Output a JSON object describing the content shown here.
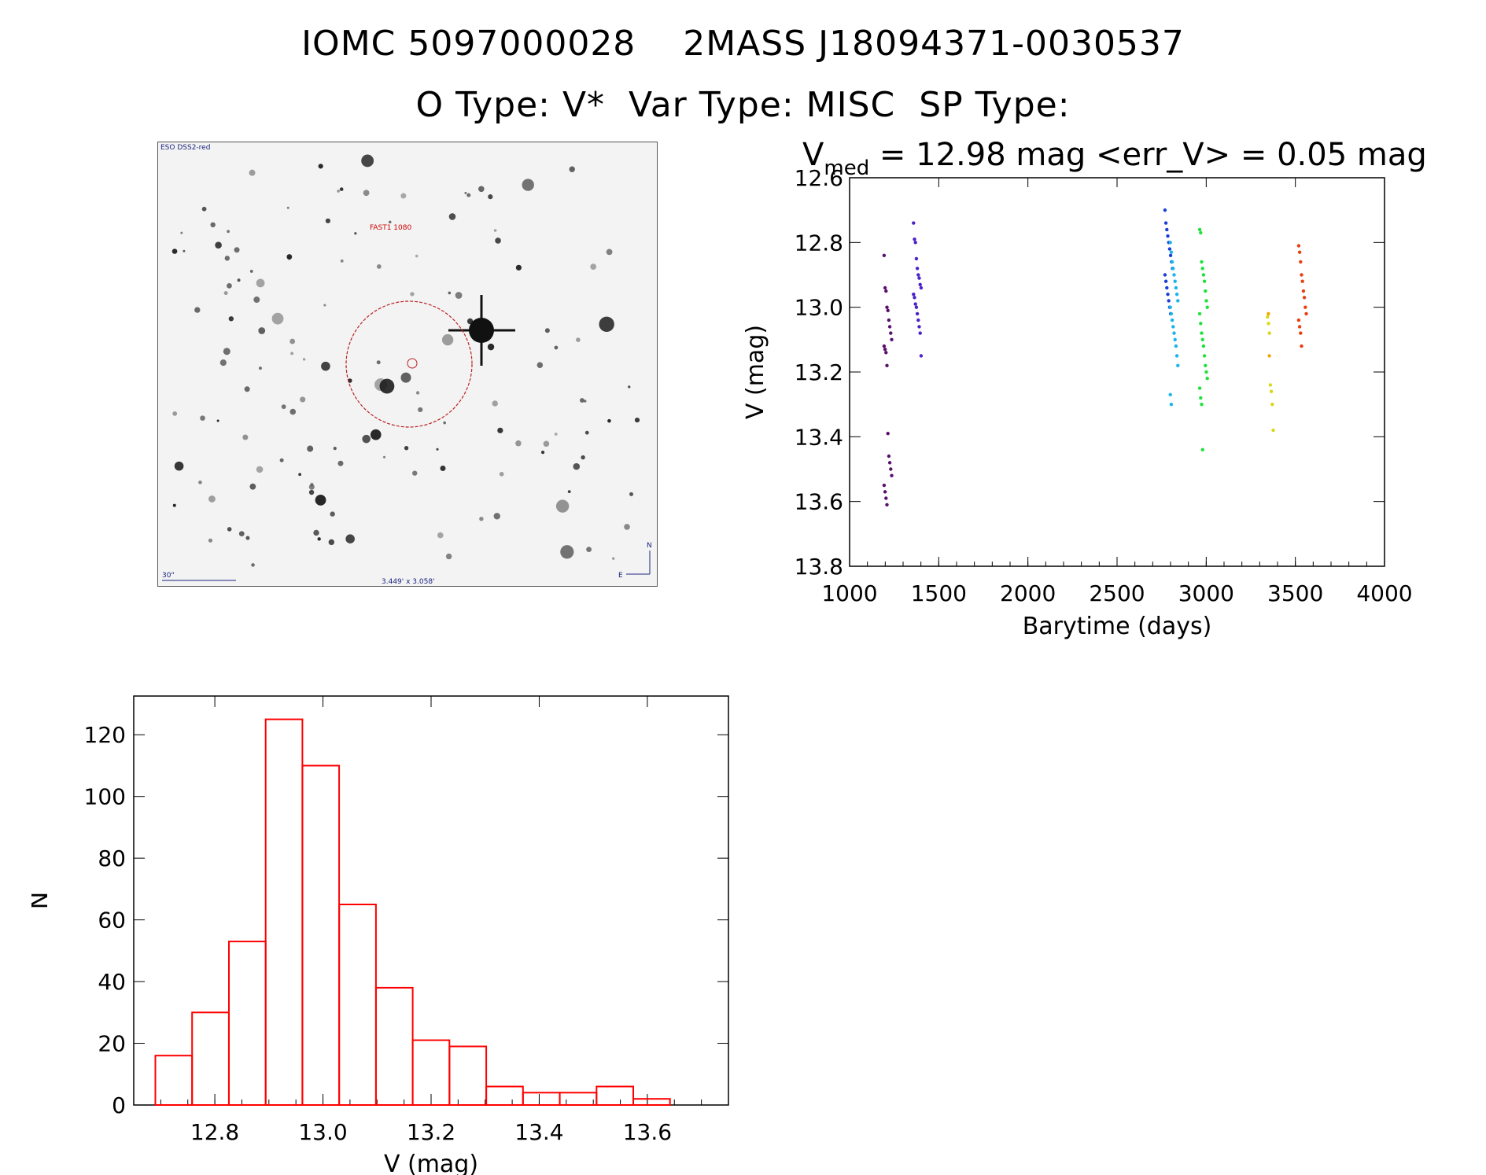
{
  "header": {
    "line1": "IOMC 5097000028    2MASS J18094371-0030537",
    "line2": "O Type: V*  Var Type: MISC  SP Type:"
  },
  "finder": {
    "survey_label": "ESO DSS2-red",
    "target_label": "FAST1 1080",
    "scale_label": "30\"",
    "fov_label": "3.449' x 3.058'",
    "north": "N",
    "east": "E"
  },
  "chart_data": [
    {
      "type": "scatter",
      "title_prefix": "V",
      "title_sub": "med",
      "title_rest": " = 12.98 mag <err_V> = 0.05 mag",
      "xlabel": "Barytime (days)",
      "ylabel": "V (mag)",
      "xlim": [
        1000,
        4000
      ],
      "ylim": [
        12.6,
        13.8
      ],
      "y_inverted": true,
      "xticks": [
        "1000",
        "1500",
        "2000",
        "2500",
        "3000",
        "3500",
        "4000"
      ],
      "yticks": [
        "12.6",
        "12.8",
        "13.0",
        "13.2",
        "13.4",
        "13.6",
        "13.8"
      ],
      "groups": [
        {
          "color": "#5a0f6e",
          "x": 1215,
          "y": [
            12.84,
            12.94,
            12.95,
            13.0,
            13.01,
            13.04,
            13.06,
            13.08,
            13.1,
            13.12,
            13.13,
            13.14,
            13.18,
            13.39,
            13.46,
            13.48,
            13.5,
            13.52,
            13.55,
            13.57,
            13.59,
            13.61
          ]
        },
        {
          "color": "#4b21c8",
          "x": 1380,
          "y": [
            12.74,
            12.79,
            12.8,
            12.85,
            12.88,
            12.9,
            12.91,
            12.93,
            12.94,
            12.96,
            12.97,
            12.99,
            13.0,
            13.02,
            13.04,
            13.06,
            13.08,
            13.15
          ]
        },
        {
          "color": "#1a3fd6",
          "x": 2790,
          "y": [
            12.7,
            12.74,
            12.76,
            12.78,
            12.8,
            12.82,
            12.84,
            12.86,
            12.88,
            12.9,
            12.92,
            12.94,
            12.96,
            12.98,
            13.0,
            13.02
          ]
        },
        {
          "color": "#1ab4e8",
          "x": 2820,
          "y": [
            12.8,
            12.83,
            12.86,
            12.88,
            12.9,
            12.92,
            12.94,
            12.96,
            12.98,
            13.0,
            13.02,
            13.04,
            13.06,
            13.08,
            13.1,
            13.12,
            13.15,
            13.18,
            13.27,
            13.3
          ]
        },
        {
          "color": "#1ee23a",
          "x": 2985,
          "y": [
            12.76,
            12.77,
            12.86,
            12.88,
            12.9,
            12.92,
            12.95,
            12.98,
            13.0,
            13.02,
            13.05,
            13.08,
            13.1,
            13.12,
            13.15,
            13.18,
            13.2,
            13.22,
            13.25,
            13.28,
            13.3,
            13.44
          ]
        },
        {
          "color": "#d8d818",
          "x": 3365,
          "y": [
            13.03,
            13.05,
            13.08,
            13.24,
            13.26,
            13.3,
            13.38
          ]
        },
        {
          "color": "#f0a500",
          "x": 3370,
          "y": [
            13.02,
            13.15
          ]
        },
        {
          "color": "#e84010",
          "x": 3540,
          "y": [
            12.81,
            12.83,
            12.86,
            12.9,
            12.92,
            12.95,
            12.97,
            13.0,
            13.02,
            13.04,
            13.06,
            13.08,
            13.12
          ]
        }
      ]
    },
    {
      "type": "bar",
      "style": "histogram",
      "xlabel": "V (mag)",
      "ylabel": "N",
      "xlim": [
        12.65,
        13.75
      ],
      "ylim": [
        0,
        130
      ],
      "xticks": [
        "12.8",
        "13.0",
        "13.2",
        "13.4",
        "13.6"
      ],
      "yticks": [
        "0",
        "20",
        "40",
        "60",
        "80",
        "100",
        "120"
      ],
      "bin_start": 12.69,
      "bin_width": 0.068,
      "values": [
        16,
        30,
        53,
        125,
        110,
        65,
        38,
        21,
        19,
        6,
        4,
        4,
        6,
        2
      ],
      "color": "#ff0000"
    }
  ]
}
